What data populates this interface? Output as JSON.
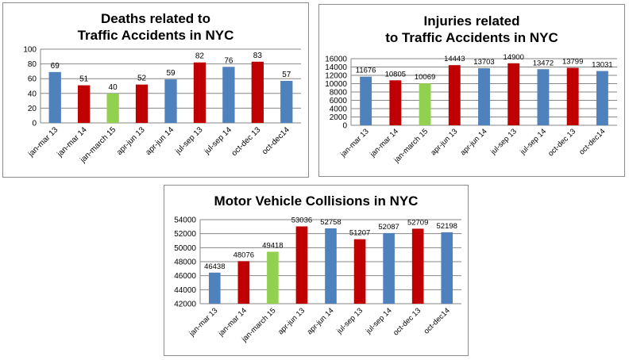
{
  "chart_data": [
    {
      "type": "bar",
      "title": "Deaths related to\nTraffic Accidents in NYC",
      "categories": [
        "jan-mar 13",
        "jan-mar 14",
        "jan-march 15",
        "apr-jun 13",
        "apr-jun 14",
        "jul-sep 13",
        "jul-sep 14",
        "oct-dec 13",
        "oct-dec14"
      ],
      "values": [
        69,
        51,
        40,
        52,
        59,
        82,
        76,
        83,
        57
      ],
      "data_labels": [
        "69",
        "51",
        "40",
        "52",
        "59",
        "82",
        "76",
        "83",
        "57"
      ],
      "bar_colors": [
        "#4f81bd",
        "#c00000",
        "#92d050",
        "#c00000",
        "#4f81bd",
        "#c00000",
        "#4f81bd",
        "#c00000",
        "#4f81bd"
      ],
      "yticks": [
        "0",
        "20",
        "40",
        "60",
        "80",
        "100"
      ],
      "ylim": [
        0,
        100
      ],
      "grid": true,
      "legend": false
    },
    {
      "type": "bar",
      "title": "Injuries related\nto Traffic Accidents in NYC",
      "categories": [
        "jan-mar 13",
        "jan-mar 14",
        "jan-march 15",
        "apr-jun 13",
        "apr-jun 14",
        "jul-sep 13",
        "jul-sep 14",
        "oct-dec 13",
        "oct-dec14"
      ],
      "values": [
        11676,
        10805,
        10069,
        14443,
        13703,
        14900,
        13472,
        13799,
        13031
      ],
      "data_labels": [
        "11676",
        "10805",
        "10069",
        "14443",
        "13703",
        "14900",
        "13472",
        "13799",
        "13031"
      ],
      "bar_colors": [
        "#4f81bd",
        "#c00000",
        "#92d050",
        "#c00000",
        "#4f81bd",
        "#c00000",
        "#4f81bd",
        "#c00000",
        "#4f81bd"
      ],
      "yticks": [
        "0",
        "2000",
        "4000",
        "6000",
        "8000",
        "10000",
        "12000",
        "14000",
        "16000"
      ],
      "ylim": [
        0,
        16000
      ],
      "grid": true,
      "legend": false
    },
    {
      "type": "bar",
      "title": "Motor Vehicle Collisions in NYC",
      "categories": [
        "jan-mar 13",
        "jan-mar 14",
        "jan-march 15",
        "apr-jun 13",
        "apr-jun 14",
        "jul-sep 13",
        "jul-sep 14",
        "oct-dec 13",
        "oct-dec14"
      ],
      "values": [
        46438,
        48076,
        49418,
        53036,
        52758,
        51207,
        52087,
        52709,
        52198
      ],
      "data_labels": [
        "46438",
        "48076",
        "49418",
        "53036",
        "52758",
        "51207",
        "52087",
        "52709",
        "52198"
      ],
      "bar_colors": [
        "#4f81bd",
        "#c00000",
        "#92d050",
        "#c00000",
        "#4f81bd",
        "#c00000",
        "#4f81bd",
        "#c00000",
        "#4f81bd"
      ],
      "yticks": [
        "42000",
        "44000",
        "46000",
        "48000",
        "50000",
        "52000",
        "54000"
      ],
      "ylim": [
        42000,
        54000
      ],
      "grid": true,
      "legend": false
    }
  ]
}
